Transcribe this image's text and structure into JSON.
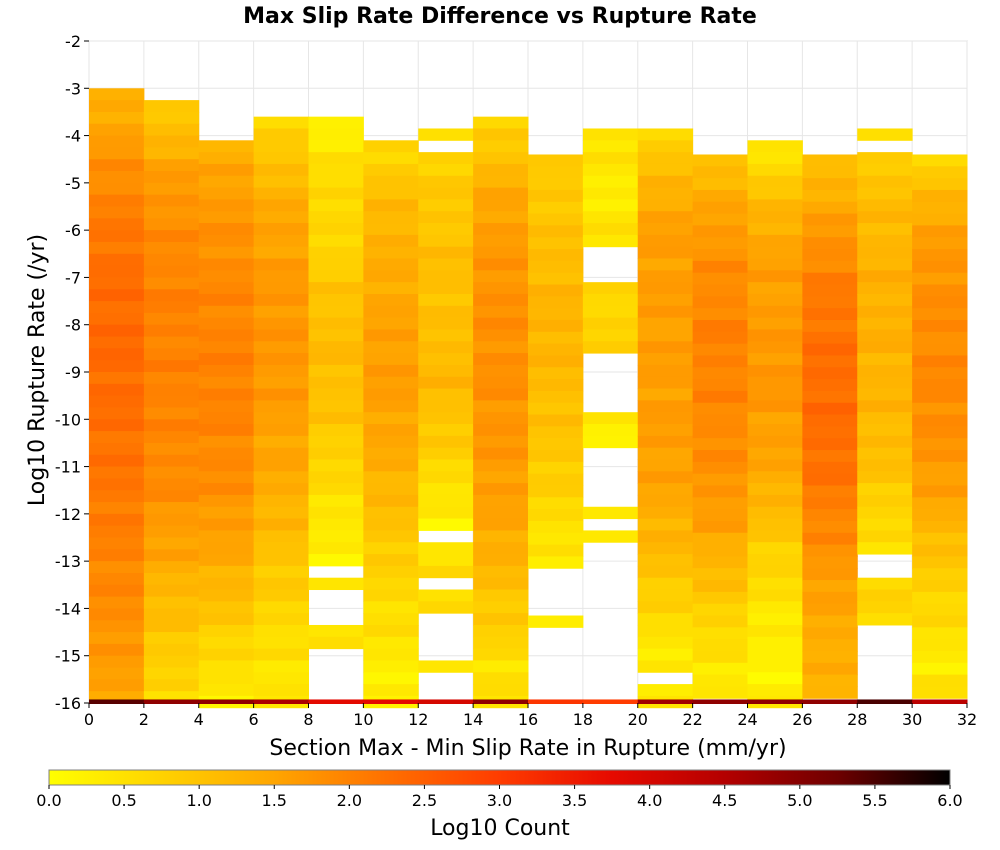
{
  "chart_data": {
    "type": "heatmap",
    "title": "Max Slip Rate Difference vs Rupture Rate",
    "xlabel": "Section Max - Min Slip Rate in Rupture (mm/yr)",
    "ylabel": "Log10 Rupture Rate (/yr)",
    "xlim": [
      0,
      32
    ],
    "ylim": [
      -16,
      -2
    ],
    "x_bin_width": 2,
    "y_bin_height": 0.25,
    "x_ticks": [
      "0",
      "2",
      "4",
      "6",
      "8",
      "10",
      "12",
      "14",
      "16",
      "18",
      "20",
      "22",
      "24",
      "26",
      "28",
      "30",
      "32"
    ],
    "y_ticks": [
      "-2",
      "-3",
      "-4",
      "-5",
      "-6",
      "-7",
      "-8",
      "-9",
      "-10",
      "-11",
      "-12",
      "-13",
      "-14",
      "-15",
      "-16"
    ],
    "grid": true,
    "colorbar": {
      "label": "Log10 Count",
      "min": 0.0,
      "max": 6.0,
      "ticks": [
        "0.0",
        "0.5",
        "1.0",
        "1.5",
        "2.0",
        "2.5",
        "3.0",
        "3.5",
        "4.0",
        "4.5",
        "5.0",
        "5.5",
        "6.0"
      ],
      "colormap": [
        "#ffff00",
        "#ffd200",
        "#ffa500",
        "#ff7000",
        "#ff3c00",
        "#e60a00",
        "#b40000",
        "#6e0000",
        "#000000"
      ]
    },
    "columns": [
      {
        "x": 0,
        "top": -3.0,
        "bottom": -16.0,
        "profile": [
          1.2,
          1.5,
          1.8,
          2.0,
          2.2,
          2.3,
          2.35,
          2.35,
          2.3,
          2.25,
          2.2,
          2.1,
          2.0,
          1.9,
          1.8,
          1.6,
          1.5
        ],
        "gaps": []
      },
      {
        "x": 2,
        "top": -3.25,
        "bottom": -16.0,
        "profile": [
          0.7,
          1.2,
          1.6,
          1.8,
          1.9,
          2.0,
          2.0,
          2.0,
          2.0,
          1.9,
          1.9,
          1.7,
          1.5,
          1.2,
          1.0,
          0.8,
          0.5
        ],
        "gaps": []
      },
      {
        "x": 4,
        "top": -4.1,
        "bottom": -16.0,
        "profile": [
          1.2,
          1.5,
          1.7,
          1.8,
          1.9,
          1.95,
          2.0,
          2.0,
          1.95,
          1.9,
          1.8,
          1.6,
          1.4,
          1.1,
          0.8,
          0.5,
          0.3
        ],
        "gaps": []
      },
      {
        "x": 6,
        "top": -3.6,
        "bottom": -16.0,
        "profile": [
          0.7,
          0.9,
          1.3,
          1.5,
          1.6,
          1.7,
          1.7,
          1.7,
          1.6,
          1.5,
          1.4,
          1.2,
          1.0,
          0.8,
          0.6,
          0.4,
          0.5
        ],
        "gaps": []
      },
      {
        "x": 8,
        "top": -3.6,
        "bottom": -16.0,
        "profile": [
          0.2,
          0.4,
          0.7,
          0.6,
          0.8,
          1.0,
          1.1,
          1.1,
          1.0,
          0.8,
          0.6,
          0.4,
          0.2,
          0.4,
          0.6,
          0.3,
          0.3
        ],
        "gaps": [
          [
            -13.0,
            -13.25
          ],
          [
            -13.5,
            -14.4
          ],
          [
            -14.9,
            -16.0
          ]
        ]
      },
      {
        "x": 10,
        "top": -4.1,
        "bottom": -16.0,
        "profile": [
          0.6,
          0.9,
          1.2,
          1.3,
          1.4,
          1.5,
          1.6,
          1.6,
          1.5,
          1.4,
          1.2,
          1.0,
          0.8,
          0.6,
          0.5,
          0.3,
          0.2
        ],
        "gaps": [
          [
            -13.5,
            -13.6
          ]
        ]
      },
      {
        "x": 12,
        "top": -3.85,
        "bottom": -16.0,
        "profile": [
          0.5,
          0.8,
          0.9,
          1.0,
          1.1,
          1.0,
          1.1,
          1.2,
          1.0,
          0.8,
          0.5,
          0.2,
          0.5,
          0.6,
          0.6,
          0.4,
          0.3
        ],
        "gaps": [
          [
            -4.1,
            -4.35
          ],
          [
            -12.4,
            -12.65
          ],
          [
            -13.3,
            -13.5
          ],
          [
            -14.1,
            -15.0
          ],
          [
            -15.35,
            -16.0
          ]
        ]
      },
      {
        "x": 14,
        "top": -3.6,
        "bottom": -16.0,
        "profile": [
          0.6,
          1.0,
          1.4,
          1.6,
          1.7,
          1.8,
          1.8,
          1.8,
          1.75,
          1.7,
          1.6,
          1.5,
          1.3,
          1.0,
          0.8,
          0.5,
          0.5
        ],
        "gaps": []
      },
      {
        "x": 16,
        "top": -4.4,
        "bottom": -16.0,
        "profile": [
          0.8,
          0.9,
          1.0,
          1.1,
          1.2,
          1.25,
          1.2,
          1.1,
          1.0,
          0.9,
          0.7,
          0.5,
          0.3,
          0.2,
          0.2,
          0.2,
          0.2
        ],
        "gaps": [
          [
            -13.25,
            -14.15
          ],
          [
            -14.4,
            -16.0
          ]
        ]
      },
      {
        "x": 18,
        "top": -3.85,
        "bottom": -16.0,
        "profile": [
          0.5,
          0.4,
          0.3,
          0.5,
          0.5,
          0.7,
          0.8,
          0.6,
          0.3,
          0.3,
          0.2,
          0.4,
          0.4,
          0.3,
          0.3,
          0.3,
          0.3
        ],
        "gaps": [
          [
            -6.4,
            -7.0
          ],
          [
            -8.7,
            -9.85
          ],
          [
            -10.7,
            -11.9
          ],
          [
            -12.15,
            -12.4
          ],
          [
            -12.7,
            -16.0
          ]
        ]
      },
      {
        "x": 20,
        "top": -3.85,
        "bottom": -16.0,
        "profile": [
          0.7,
          1.0,
          1.4,
          1.6,
          1.6,
          1.6,
          1.6,
          1.6,
          1.6,
          1.6,
          1.5,
          1.3,
          1.1,
          0.8,
          0.5,
          0.3,
          0.4
        ],
        "gaps": [
          [
            -15.3,
            -15.5
          ]
        ]
      },
      {
        "x": 22,
        "top": -4.4,
        "bottom": -16.0,
        "profile": [
          1.0,
          1.3,
          1.6,
          1.8,
          1.9,
          2.0,
          2.0,
          1.95,
          1.9,
          1.8,
          1.7,
          1.5,
          1.2,
          0.9,
          0.6,
          0.4,
          0.4
        ],
        "gaps": []
      },
      {
        "x": 24,
        "top": -4.1,
        "bottom": -16.0,
        "profile": [
          0.2,
          0.8,
          1.2,
          1.5,
          1.6,
          1.6,
          1.7,
          1.7,
          1.6,
          1.5,
          1.3,
          1.0,
          0.7,
          0.5,
          0.3,
          0.2,
          0.3
        ],
        "gaps": [
          [
            -14.75,
            -14.95
          ]
        ]
      },
      {
        "x": 26,
        "top": -4.4,
        "bottom": -16.0,
        "profile": [
          1.0,
          1.3,
          1.6,
          1.9,
          2.1,
          2.2,
          2.3,
          2.3,
          2.3,
          2.25,
          2.1,
          1.9,
          1.7,
          1.5,
          1.4,
          1.3,
          1.3
        ],
        "gaps": []
      },
      {
        "x": 28,
        "top": -3.85,
        "bottom": -16.0,
        "profile": [
          0.6,
          0.9,
          1.1,
          1.2,
          1.3,
          1.3,
          1.3,
          1.25,
          1.2,
          1.1,
          0.9,
          0.6,
          0.5,
          0.7,
          0.7,
          0.5,
          0.5
        ],
        "gaps": [
          [
            -4.1,
            -4.4
          ],
          [
            -12.9,
            -13.25
          ],
          [
            -14.4,
            -16.0
          ]
        ]
      },
      {
        "x": 30,
        "top": -4.4,
        "bottom": -16.0,
        "profile": [
          0.5,
          1.1,
          1.5,
          1.7,
          1.8,
          1.85,
          1.9,
          1.9,
          1.8,
          1.7,
          1.5,
          1.2,
          0.9,
          0.7,
          0.5,
          0.3,
          0.6
        ],
        "gaps": []
      }
    ],
    "bottom_row": {
      "y": -16.0,
      "values": [
        5.4,
        4.9,
        4.9,
        4.6,
        3.8,
        3.8,
        4.0,
        4.9,
        3.1,
        3.0,
        4.7,
        4.9,
        4.9,
        4.9,
        5.5,
        4.4
      ]
    }
  }
}
